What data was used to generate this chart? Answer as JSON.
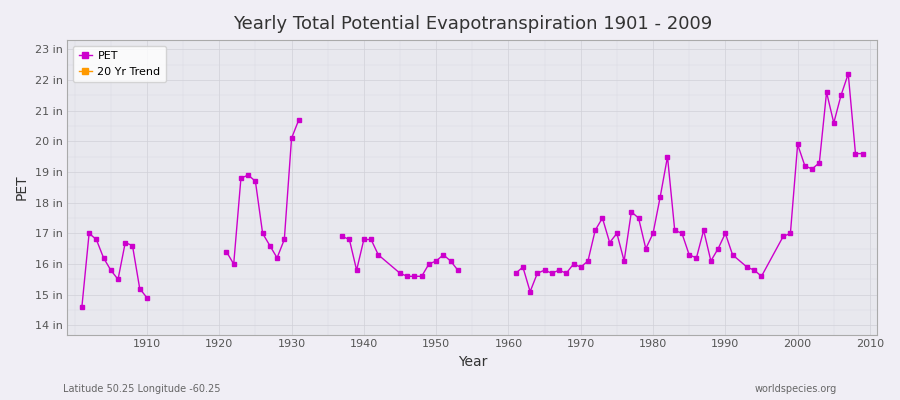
{
  "title": "Yearly Total Potential Evapotranspiration 1901 - 2009",
  "xlabel": "Year",
  "ylabel": "PET",
  "subtitle_left": "Latitude 50.25 Longitude -60.25",
  "subtitle_right": "worldspecies.org",
  "background_color": "#f0eef5",
  "plot_bg_color": "#e8e8ee",
  "line_color": "#cc00cc",
  "trend_color": "#ff9900",
  "legend_labels": [
    "PET",
    "20 Yr Trend"
  ],
  "ytick_labels": [
    "14 in",
    "15 in",
    "16 in",
    "17 in",
    "18 in",
    "19 in",
    "20 in",
    "21 in",
    "22 in",
    "23 in"
  ],
  "ytick_values": [
    14,
    15,
    16,
    17,
    18,
    19,
    20,
    21,
    22,
    23
  ],
  "ylim": [
    13.7,
    23.3
  ],
  "xlim": [
    1899,
    2011
  ],
  "xtick_values": [
    1910,
    1920,
    1930,
    1940,
    1950,
    1960,
    1970,
    1980,
    1990,
    2000,
    2010
  ],
  "years": [
    1901,
    1902,
    1903,
    1904,
    1905,
    1906,
    1907,
    1908,
    1909,
    1910,
    1921,
    1922,
    1923,
    1924,
    1925,
    1926,
    1927,
    1928,
    1929,
    1930,
    1931,
    1937,
    1938,
    1939,
    1940,
    1941,
    1942,
    1945,
    1946,
    1947,
    1948,
    1949,
    1950,
    1951,
    1952,
    1953,
    1961,
    1962,
    1963,
    1964,
    1965,
    1966,
    1967,
    1968,
    1969,
    1970,
    1971,
    1972,
    1973,
    1974,
    1975,
    1976,
    1977,
    1978,
    1979,
    1980,
    1981,
    1982,
    1983,
    1984,
    1985,
    1986,
    1987,
    1988,
    1989,
    1990,
    1991,
    1993,
    1994,
    1995,
    1998,
    1999,
    2000,
    2001,
    2002,
    2003,
    2004,
    2005,
    2006,
    2007,
    2008,
    2009
  ],
  "values": [
    14.6,
    17.0,
    16.8,
    16.2,
    15.8,
    15.5,
    16.7,
    16.6,
    15.2,
    14.9,
    16.4,
    16.0,
    18.8,
    18.9,
    18.7,
    17.0,
    16.6,
    16.2,
    16.8,
    20.1,
    20.7,
    16.9,
    16.8,
    15.8,
    16.8,
    16.8,
    16.3,
    15.7,
    15.6,
    15.6,
    15.6,
    16.0,
    16.1,
    16.3,
    16.1,
    15.8,
    15.7,
    15.9,
    15.1,
    15.7,
    15.8,
    15.7,
    15.8,
    15.7,
    16.0,
    15.9,
    16.1,
    17.1,
    17.5,
    16.7,
    17.0,
    16.1,
    17.7,
    17.5,
    16.5,
    17.0,
    18.2,
    19.5,
    17.1,
    17.0,
    16.3,
    16.2,
    17.1,
    16.1,
    16.5,
    17.0,
    16.3,
    15.9,
    15.8,
    15.6,
    16.9,
    17.0,
    19.9,
    19.2,
    19.1,
    19.3,
    21.6,
    20.6,
    21.5,
    22.2,
    19.6,
    19.6
  ]
}
